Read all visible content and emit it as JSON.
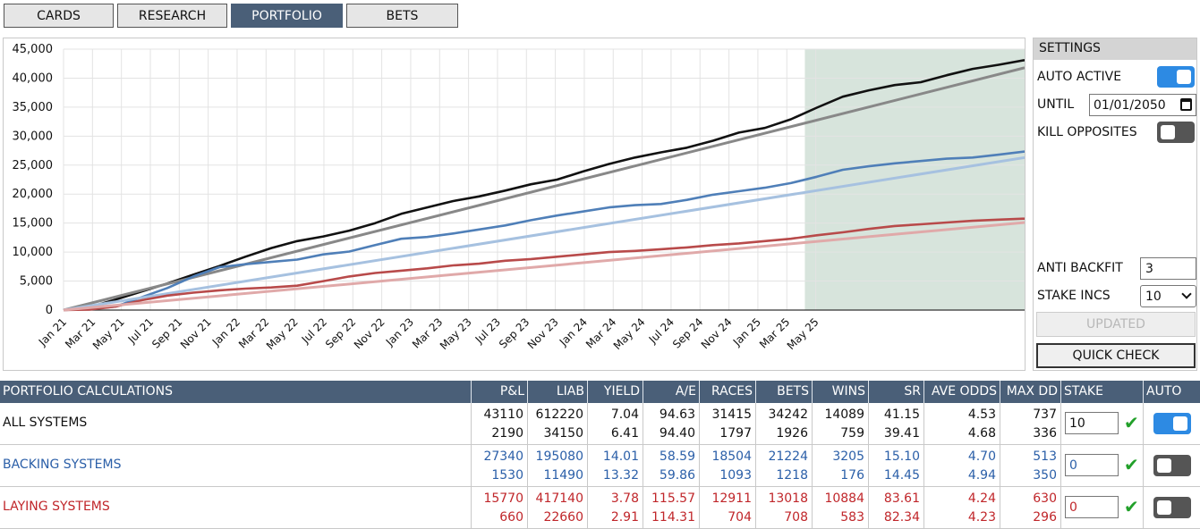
{
  "nav": {
    "tabs": [
      {
        "label": "CARDS",
        "active": false
      },
      {
        "label": "RESEARCH",
        "active": false
      },
      {
        "label": "PORTFOLIO",
        "active": true
      },
      {
        "label": "BETS",
        "active": false
      }
    ]
  },
  "chart_data": {
    "type": "line",
    "title": "",
    "xlabel": "",
    "ylabel": "",
    "ylim": [
      0,
      45000
    ],
    "y_ticks": [
      "0",
      "5,000",
      "10,000",
      "15,000",
      "20,000",
      "25,000",
      "30,000",
      "35,000",
      "40,000",
      "45,000"
    ],
    "x_ticks": [
      "Jan 21",
      "Mar 21",
      "May 21",
      "Jul 21",
      "Sep 21",
      "Nov 21",
      "Jan 22",
      "Mar 22",
      "May 22",
      "Jul 22",
      "Sep 22",
      "Nov 22",
      "Jan 23",
      "Mar 23",
      "May 23",
      "Jul 23",
      "Sep 23",
      "Nov 23",
      "Jan 24",
      "Mar 24",
      "May 24",
      "Jul 24",
      "Sep 24",
      "Nov 24",
      "Jan 25",
      "Mar 25",
      "May 25"
    ],
    "grid": true,
    "highlight_region": {
      "from": "Apr 25",
      "to": "Jun 25",
      "color": "#d7e4dc"
    },
    "series": [
      {
        "color": "#111111",
        "points": [
          [
            0,
            0
          ],
          [
            1,
            500
          ],
          [
            2,
            1800
          ],
          [
            3,
            3200
          ],
          [
            4,
            4600
          ],
          [
            5,
            6100
          ],
          [
            6,
            7600
          ],
          [
            7,
            9200
          ],
          [
            8,
            10700
          ],
          [
            9,
            11900
          ],
          [
            10,
            12700
          ],
          [
            11,
            13700
          ],
          [
            12,
            15000
          ],
          [
            13,
            16600
          ],
          [
            14,
            17700
          ],
          [
            15,
            18800
          ],
          [
            16,
            19600
          ],
          [
            17,
            20600
          ],
          [
            18,
            21700
          ],
          [
            19,
            22500
          ],
          [
            20,
            23900
          ],
          [
            21,
            25200
          ],
          [
            22,
            26300
          ],
          [
            23,
            27200
          ],
          [
            24,
            28000
          ],
          [
            25,
            29200
          ],
          [
            26,
            30600
          ],
          [
            27,
            31400
          ],
          [
            28,
            32900
          ],
          [
            29,
            34900
          ],
          [
            30,
            36800
          ],
          [
            31,
            37900
          ],
          [
            32,
            38800
          ],
          [
            33,
            39300
          ],
          [
            34,
            40500
          ],
          [
            35,
            41600
          ],
          [
            36,
            42300
          ],
          [
            37,
            43100
          ]
        ]
      },
      {
        "color": "#888888",
        "trend": true,
        "points": [
          [
            0,
            0
          ],
          [
            37,
            41800
          ]
        ]
      },
      {
        "color": "#4f7fb8",
        "points": [
          [
            0,
            0
          ],
          [
            1,
            200
          ],
          [
            2,
            600
          ],
          [
            3,
            2200
          ],
          [
            4,
            3800
          ],
          [
            5,
            5800
          ],
          [
            6,
            7400
          ],
          [
            7,
            7900
          ],
          [
            8,
            8300
          ],
          [
            9,
            8700
          ],
          [
            10,
            9600
          ],
          [
            11,
            10100
          ],
          [
            12,
            11200
          ],
          [
            13,
            12300
          ],
          [
            14,
            12600
          ],
          [
            15,
            13200
          ],
          [
            16,
            13900
          ],
          [
            17,
            14600
          ],
          [
            18,
            15500
          ],
          [
            19,
            16300
          ],
          [
            20,
            17000
          ],
          [
            21,
            17700
          ],
          [
            22,
            18100
          ],
          [
            23,
            18300
          ],
          [
            24,
            19000
          ],
          [
            25,
            19900
          ],
          [
            26,
            20500
          ],
          [
            27,
            21100
          ],
          [
            28,
            21900
          ],
          [
            29,
            23000
          ],
          [
            30,
            24200
          ],
          [
            31,
            24800
          ],
          [
            32,
            25300
          ],
          [
            33,
            25700
          ],
          [
            34,
            26100
          ],
          [
            35,
            26300
          ],
          [
            36,
            26800
          ],
          [
            37,
            27340
          ]
        ]
      },
      {
        "color": "#a6c1e0",
        "trend": true,
        "points": [
          [
            0,
            0
          ],
          [
            37,
            26300
          ]
        ]
      },
      {
        "color": "#b84a4a",
        "points": [
          [
            0,
            0
          ],
          [
            1,
            100
          ],
          [
            2,
            600
          ],
          [
            3,
            1700
          ],
          [
            4,
            2500
          ],
          [
            5,
            3000
          ],
          [
            6,
            3400
          ],
          [
            7,
            3700
          ],
          [
            8,
            3900
          ],
          [
            9,
            4200
          ],
          [
            10,
            5000
          ],
          [
            11,
            5800
          ],
          [
            12,
            6400
          ],
          [
            13,
            6800
          ],
          [
            14,
            7200
          ],
          [
            15,
            7700
          ],
          [
            16,
            8000
          ],
          [
            17,
            8500
          ],
          [
            18,
            8800
          ],
          [
            19,
            9200
          ],
          [
            20,
            9600
          ],
          [
            21,
            10000
          ],
          [
            22,
            10200
          ],
          [
            23,
            10500
          ],
          [
            24,
            10800
          ],
          [
            25,
            11200
          ],
          [
            26,
            11500
          ],
          [
            27,
            11900
          ],
          [
            28,
            12300
          ],
          [
            29,
            12900
          ],
          [
            30,
            13400
          ],
          [
            31,
            14000
          ],
          [
            32,
            14500
          ],
          [
            33,
            14800
          ],
          [
            34,
            15100
          ],
          [
            35,
            15400
          ],
          [
            36,
            15600
          ],
          [
            37,
            15770
          ]
        ]
      },
      {
        "color": "#e0a9a9",
        "trend": true,
        "points": [
          [
            0,
            0
          ],
          [
            37,
            15100
          ]
        ]
      }
    ]
  },
  "settings": {
    "title": "SETTINGS",
    "auto_active_label": "AUTO ACTIVE",
    "auto_active": true,
    "until_label": "UNTIL",
    "until_value": "01/01/2050",
    "kill_opposites_label": "KILL OPPOSITES",
    "kill_opposites": false,
    "anti_backfit_label": "ANTI BACKFIT",
    "anti_backfit_value": "3",
    "stake_incs_label": "STAKE INCS",
    "stake_incs_value": "10",
    "updated_label": "UPDATED",
    "quick_check_label": "QUICK CHECK"
  },
  "table": {
    "title": "PORTFOLIO CALCULATIONS",
    "columns": [
      "P&L",
      "LIAB",
      "YIELD",
      "A/E",
      "RACES",
      "BETS",
      "WINS",
      "SR",
      "AVE ODDS",
      "MAX DD",
      "STAKE",
      "AUTO"
    ],
    "rows": [
      {
        "name": "ALL SYSTEMS",
        "color": "#111111",
        "top": [
          "43110",
          "612220",
          "7.04",
          "94.63",
          "31415",
          "34242",
          "14089",
          "41.15",
          "4.53",
          "737"
        ],
        "bottom": [
          "2190",
          "34150",
          "6.41",
          "94.40",
          "1797",
          "1926",
          "759",
          "39.41",
          "4.68",
          "336"
        ],
        "stake": "10",
        "auto": true
      },
      {
        "name": "BACKING SYSTEMS",
        "color": "#2b5fa8",
        "top": [
          "27340",
          "195080",
          "14.01",
          "58.59",
          "18504",
          "21224",
          "3205",
          "15.10",
          "4.70",
          "513"
        ],
        "bottom": [
          "1530",
          "11490",
          "13.32",
          "59.86",
          "1093",
          "1218",
          "176",
          "14.45",
          "4.94",
          "350"
        ],
        "stake": "0",
        "auto": false
      },
      {
        "name": "LAYING SYSTEMS",
        "color": "#c0262a",
        "top": [
          "15770",
          "417140",
          "3.78",
          "115.57",
          "12911",
          "13018",
          "10884",
          "83.61",
          "4.24",
          "630"
        ],
        "bottom": [
          "660",
          "22660",
          "2.91",
          "114.31",
          "704",
          "708",
          "583",
          "82.34",
          "4.23",
          "296"
        ],
        "stake": "0",
        "auto": false
      }
    ]
  }
}
